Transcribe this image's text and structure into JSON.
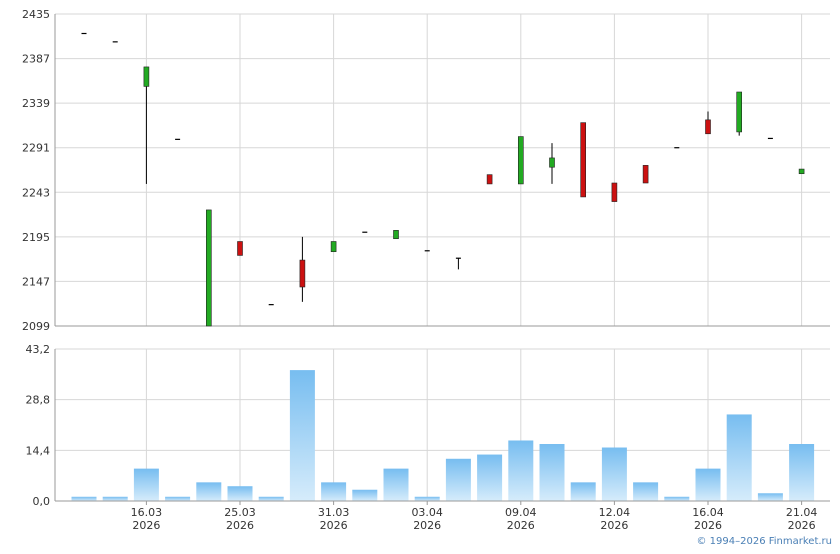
{
  "credit": "© 1994–2026 Finmarket.ru",
  "colors": {
    "up": "#22aa22",
    "down": "#cc1111",
    "wick": "#000000",
    "grid": "#d7d7d7",
    "axis": "#9a9a9a",
    "volume_top": "#77bdf0",
    "volume_bottom": "#d6ecfb"
  },
  "chart_data": [
    {
      "type": "candlestick",
      "title": "",
      "ylim": [
        2099,
        2435
      ],
      "yticks": [
        "2435",
        "2387",
        "2339",
        "2291",
        "2243",
        "2195",
        "2147",
        "2099"
      ],
      "grid": true,
      "series": [
        {
          "values": [
            {
              "date": "2026-03-12",
              "open": 2414,
              "high": 2414,
              "low": 2414,
              "close": 2414
            },
            {
              "date": "2026-03-13",
              "open": 2405,
              "high": 2405,
              "low": 2405,
              "close": 2405
            },
            {
              "date": "2026-03-16",
              "open": 2357,
              "high": 2378,
              "low": 2252,
              "close": 2378
            },
            {
              "date": "2026-03-17",
              "open": 2300,
              "high": 2300,
              "low": 2300,
              "close": 2300
            },
            {
              "date": "2026-03-20",
              "open": 2099,
              "high": 2224,
              "low": 2099,
              "close": 2224
            },
            {
              "date": "2026-03-25",
              "open": 2190,
              "high": 2190,
              "low": 2175,
              "close": 2175
            },
            {
              "date": "2026-03-26",
              "open": 2122,
              "high": 2122,
              "low": 2122,
              "close": 2122
            },
            {
              "date": "2026-03-27",
              "open": 2170,
              "high": 2195,
              "low": 2125,
              "close": 2141
            },
            {
              "date": "2026-03-31",
              "open": 2179,
              "high": 2190,
              "low": 2179,
              "close": 2190
            },
            {
              "date": "2026-04-01",
              "open": 2200,
              "high": 2200,
              "low": 2200,
              "close": 2200
            },
            {
              "date": "2026-04-02",
              "open": 2193,
              "high": 2202,
              "low": 2193,
              "close": 2202
            },
            {
              "date": "2026-04-03",
              "open": 2180,
              "high": 2180,
              "low": 2180,
              "close": 2180
            },
            {
              "date": "2026-04-06",
              "open": 2172,
              "high": 2172,
              "low": 2160,
              "close": 2172
            },
            {
              "date": "2026-04-07",
              "open": 2262,
              "high": 2262,
              "low": 2252,
              "close": 2252
            },
            {
              "date": "2026-04-09",
              "open": 2252,
              "high": 2303,
              "low": 2252,
              "close": 2303
            },
            {
              "date": "2026-04-10",
              "open": 2270,
              "high": 2296,
              "low": 2252,
              "close": 2280
            },
            {
              "date": "2026-04-11",
              "open": 2318,
              "high": 2318,
              "low": 2238,
              "close": 2238
            },
            {
              "date": "2026-04-12",
              "open": 2253,
              "high": 2253,
              "low": 2233,
              "close": 2233
            },
            {
              "date": "2026-04-13",
              "open": 2272,
              "high": 2272,
              "low": 2253,
              "close": 2253
            },
            {
              "date": "2026-04-14",
              "open": 2291,
              "high": 2291,
              "low": 2291,
              "close": 2291
            },
            {
              "date": "2026-04-16",
              "open": 2321,
              "high": 2330,
              "low": 2306,
              "close": 2306
            },
            {
              "date": "2026-04-17",
              "open": 2308,
              "high": 2351,
              "low": 2304,
              "close": 2351
            },
            {
              "date": "2026-04-18",
              "open": 2301,
              "high": 2301,
              "low": 2301,
              "close": 2301
            },
            {
              "date": "2026-04-21",
              "open": 2263,
              "high": 2268,
              "low": 2263,
              "close": 2268
            }
          ]
        }
      ]
    },
    {
      "type": "bar",
      "title": "",
      "ylim": [
        0,
        43.2
      ],
      "yticks": [
        "43,2",
        "28,8",
        "14,4",
        "0,0"
      ],
      "grid": true,
      "values": [
        1.2,
        1.2,
        9.2,
        1.2,
        5.3,
        4.2,
        1.2,
        37.2,
        5.3,
        3.2,
        9.2,
        1.2,
        12.0,
        13.2,
        17.2,
        16.2,
        5.3,
        15.2,
        5.3,
        1.2,
        9.2,
        24.6,
        2.2,
        16.2
      ]
    }
  ],
  "x_axis": {
    "ticks": [
      {
        "date": "16.03",
        "year": "2026"
      },
      {
        "date": "25.03",
        "year": "2026"
      },
      {
        "date": "31.03",
        "year": "2026"
      },
      {
        "date": "03.04",
        "year": "2026"
      },
      {
        "date": "09.04",
        "year": "2026"
      },
      {
        "date": "12.04",
        "year": "2026"
      },
      {
        "date": "16.04",
        "year": "2026"
      },
      {
        "date": "21.04",
        "year": "2026"
      }
    ]
  }
}
